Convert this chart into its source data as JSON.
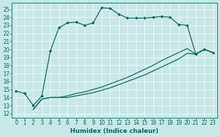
{
  "bg_color": "#c8e8e8",
  "line_color": "#006860",
  "grid_color": "#b0d0d0",
  "xlim": [
    -0.5,
    23.5
  ],
  "ylim": [
    11.5,
    25.8
  ],
  "xticks": [
    0,
    1,
    2,
    3,
    4,
    5,
    6,
    7,
    8,
    9,
    10,
    11,
    12,
    13,
    14,
    15,
    16,
    17,
    18,
    19,
    20,
    21,
    22,
    23
  ],
  "yticks": [
    12,
    13,
    14,
    15,
    16,
    17,
    18,
    19,
    20,
    21,
    22,
    23,
    24,
    25
  ],
  "curve1_x": [
    0,
    1,
    2,
    3,
    4,
    5,
    6,
    7,
    8,
    9,
    10,
    11,
    12,
    13,
    14,
    15,
    16,
    17,
    18,
    19,
    20,
    21,
    22,
    23
  ],
  "curve1_y": [
    14.8,
    14.5,
    13.0,
    14.2,
    19.8,
    22.7,
    23.3,
    23.4,
    23.0,
    23.3,
    25.2,
    25.1,
    24.4,
    23.9,
    23.9,
    23.9,
    24.0,
    24.1,
    24.0,
    23.1,
    23.0,
    19.4,
    20.0,
    19.6
  ],
  "curve2_x": [
    2,
    3,
    4,
    5,
    6,
    7,
    8,
    9,
    10,
    11,
    12,
    13,
    14,
    15,
    16,
    17,
    18,
    19,
    20,
    21,
    22,
    23
  ],
  "curve2_y": [
    12.5,
    13.8,
    14.0,
    14.0,
    14.2,
    14.5,
    14.7,
    15.0,
    15.3,
    15.7,
    16.1,
    16.5,
    17.0,
    17.5,
    18.0,
    18.6,
    19.1,
    19.6,
    20.1,
    19.4,
    20.0,
    19.6
  ],
  "curve3_x": [
    2,
    3,
    4,
    5,
    6,
    7,
    8,
    9,
    10,
    11,
    12,
    13,
    14,
    15,
    16,
    17,
    18,
    19,
    20,
    21,
    22,
    23
  ],
  "curve3_y": [
    12.5,
    13.8,
    14.0,
    14.0,
    14.0,
    14.2,
    14.4,
    14.6,
    14.9,
    15.2,
    15.6,
    16.0,
    16.4,
    16.8,
    17.3,
    17.8,
    18.3,
    18.8,
    19.5,
    19.4,
    20.0,
    19.6
  ],
  "xlabel": "Humidex (Indice chaleur)",
  "tick_fontsize": 5.5,
  "xlabel_fontsize": 6.5,
  "lw": 0.9,
  "ms": 2.0
}
